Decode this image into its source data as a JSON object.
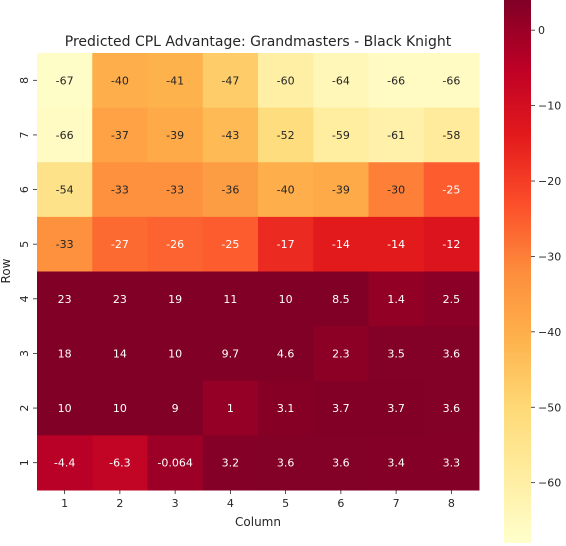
{
  "chart_data": {
    "type": "heatmap",
    "title": "Predicted CPL Advantage: Grandmasters - Black Knight",
    "xlabel": "Column",
    "ylabel": "Row",
    "x_categories": [
      "1",
      "2",
      "3",
      "4",
      "5",
      "6",
      "7",
      "8"
    ],
    "y_categories": [
      "8",
      "7",
      "6",
      "5",
      "4",
      "3",
      "2",
      "1"
    ],
    "values": [
      [
        -67,
        -40,
        -41,
        -47,
        -60,
        -64,
        -66,
        -66
      ],
      [
        -66,
        -37,
        -39,
        -43,
        -52,
        -59,
        -61,
        -58
      ],
      [
        -54,
        -33,
        -33,
        -36,
        -40,
        -39,
        -30,
        -25
      ],
      [
        -33,
        -27,
        -26,
        -25,
        -17,
        -14,
        -14,
        -12
      ],
      [
        23,
        23,
        19,
        11,
        10,
        8.5,
        1.4,
        2.5
      ],
      [
        18,
        14,
        10,
        9.7,
        4.6,
        2.3,
        3.5,
        3.6
      ],
      [
        10,
        10,
        9,
        1,
        3.1,
        3.7,
        3.7,
        3.6
      ],
      [
        -4.4,
        -6.3,
        -0.064,
        3.2,
        3.6,
        3.6,
        3.4,
        3.3
      ]
    ],
    "labels": [
      [
        "-67",
        "-40",
        "-41",
        "-47",
        "-60",
        "-64",
        "-66",
        "-66"
      ],
      [
        "-66",
        "-37",
        "-39",
        "-43",
        "-52",
        "-59",
        "-61",
        "-58"
      ],
      [
        "-54",
        "-33",
        "-33",
        "-36",
        "-40",
        "-39",
        "-30",
        "-25"
      ],
      [
        "-33",
        "-27",
        "-26",
        "-25",
        "-17",
        "-14",
        "-14",
        "-12"
      ],
      [
        "23",
        "23",
        "19",
        "11",
        "10",
        "8.5",
        "1.4",
        "2.5"
      ],
      [
        "18",
        "14",
        "10",
        "9.7",
        "4.6",
        "2.3",
        "3.5",
        "3.6"
      ],
      [
        "10",
        "10",
        "9",
        "1",
        "3.1",
        "3.7",
        "3.7",
        "3.6"
      ],
      [
        "-4.4",
        "-6.3",
        "-0.064",
        "3.2",
        "3.6",
        "3.6",
        "3.4",
        "3.3"
      ]
    ],
    "colormap": "YlOrRd_r",
    "color_range": [
      -68,
      4
    ],
    "colorbar_ticks": [
      0,
      -10,
      -20,
      -30,
      -40,
      -50,
      -60
    ],
    "colorbar_tick_labels": [
      "0",
      "−10",
      "−20",
      "−30",
      "−40",
      "−50",
      "−60"
    ],
    "grid": false
  }
}
